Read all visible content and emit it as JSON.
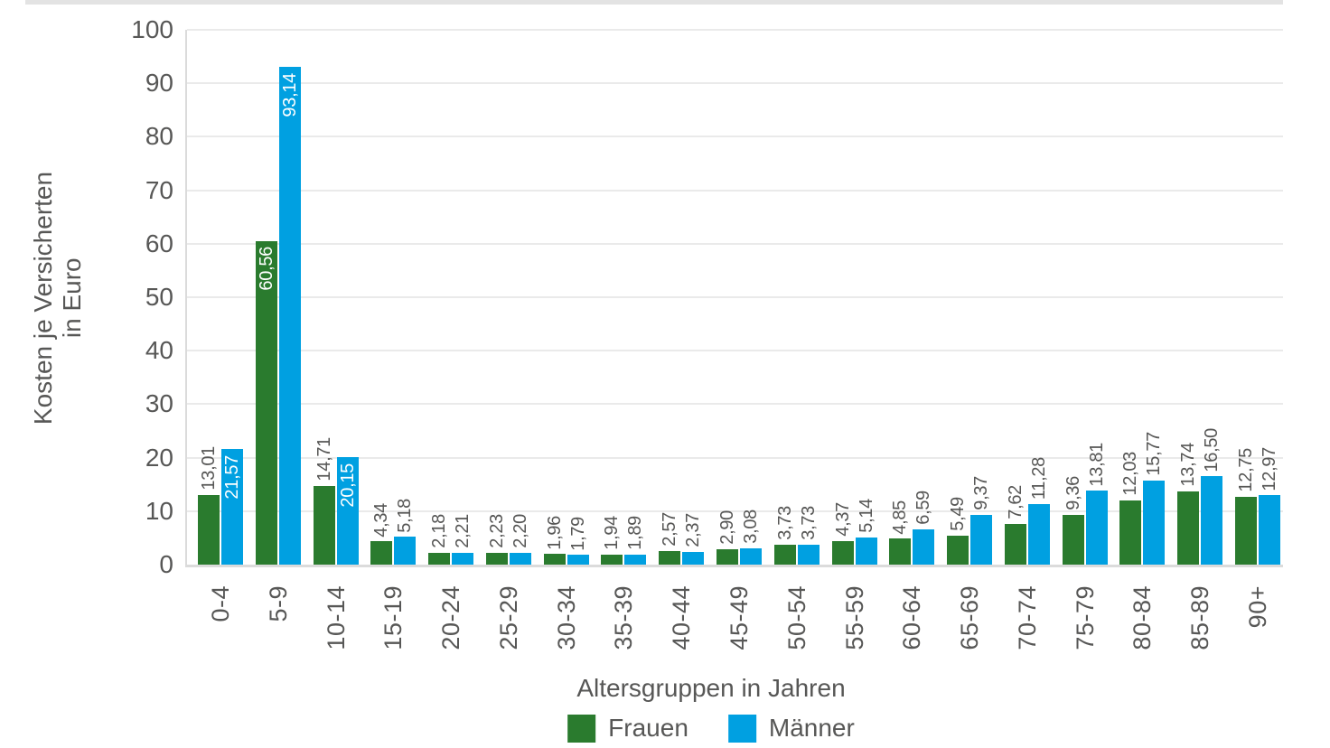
{
  "colors": {
    "frauen": "#2A7B2E",
    "maenner": "#00A0E1",
    "text": "#575756",
    "gridline": "#EAEAEA",
    "axis_line": "#DBDBDB",
    "top_strip": "#E3E3E3",
    "value_label_inside": "#FFFFFF"
  },
  "chart_data": {
    "type": "bar",
    "title": "",
    "xlabel": "Altersgruppen in Jahren",
    "ylabel": "Kosten je Versicherten in Euro",
    "ylabel_lines": [
      "Kosten je Versicherten",
      "in Euro"
    ],
    "ylim": [
      0,
      100
    ],
    "yticks": [
      0,
      10,
      20,
      30,
      40,
      50,
      60,
      70,
      80,
      90,
      100
    ],
    "grid": true,
    "legend_position": "bottom",
    "decimal_separator": ",",
    "value_label_inside_threshold": 20,
    "categories": [
      "0-4",
      "5-9",
      "10-14",
      "15-19",
      "20-24",
      "25-29",
      "30-34",
      "35-39",
      "40-44",
      "45-49",
      "50-54",
      "55-59",
      "60-64",
      "65-69",
      "70-74",
      "75-79",
      "80-84",
      "85-89",
      "90+"
    ],
    "series": [
      {
        "name": "Frauen",
        "color": "#2A7B2E",
        "values": [
          13.01,
          60.56,
          14.71,
          4.34,
          2.18,
          2.23,
          1.96,
          1.94,
          2.57,
          2.9,
          3.73,
          4.37,
          4.85,
          5.49,
          7.62,
          9.36,
          12.03,
          13.74,
          12.75
        ]
      },
      {
        "name": "Männer",
        "color": "#00A0E1",
        "values": [
          21.57,
          93.14,
          20.15,
          5.18,
          2.21,
          2.2,
          1.79,
          1.89,
          2.37,
          3.08,
          3.73,
          5.14,
          6.59,
          9.37,
          11.28,
          13.81,
          15.77,
          16.5,
          12.97
        ]
      }
    ]
  }
}
